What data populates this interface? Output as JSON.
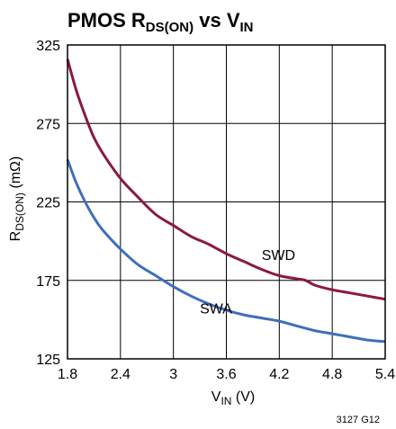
{
  "chart_data": {
    "type": "line",
    "title": {
      "main": "PMOS R",
      "main_sub": "DS(ON)",
      "vs": " vs V",
      "vs_sub": "IN"
    },
    "xlabel": {
      "main": "V",
      "sub": "IN",
      "unit": " (V)"
    },
    "ylabel": {
      "main": "R",
      "sub": "DS(ON)",
      "unit": " (mΩ)"
    },
    "xlim": [
      1.8,
      5.4
    ],
    "ylim": [
      125,
      325
    ],
    "x_ticks": [
      1.8,
      2.4,
      3,
      3.6,
      4.2,
      4.8,
      5.4
    ],
    "x_tick_labels": [
      "1.8",
      "2.4",
      "3",
      "3.6",
      "4.2",
      "4.8",
      "5.4"
    ],
    "y_ticks": [
      125,
      175,
      225,
      275,
      325
    ],
    "y_tick_labels": [
      "125",
      "175",
      "225",
      "275",
      "325"
    ],
    "grid": true,
    "series": [
      {
        "name": "SWD",
        "color": "#8b1a3a",
        "x": [
          1.8,
          1.9,
          2.0,
          2.1,
          2.2,
          2.4,
          2.6,
          2.8,
          3.0,
          3.2,
          3.4,
          3.6,
          3.8,
          4.0,
          4.2,
          4.4,
          4.5,
          4.6,
          4.8,
          5.0,
          5.2,
          5.4
        ],
        "values": [
          316,
          296,
          280,
          266,
          256,
          240,
          228,
          217,
          210,
          203,
          198,
          192,
          187,
          182,
          178,
          176,
          175,
          172,
          169,
          167,
          165,
          163
        ]
      },
      {
        "name": "SWA",
        "color": "#3f6fba",
        "x": [
          1.8,
          1.9,
          2.0,
          2.1,
          2.2,
          2.4,
          2.6,
          2.8,
          3.0,
          3.2,
          3.4,
          3.6,
          3.8,
          4.0,
          4.2,
          4.4,
          4.6,
          4.8,
          5.0,
          5.2,
          5.4
        ],
        "values": [
          252,
          237,
          225,
          215,
          207,
          195,
          185,
          178,
          171,
          165,
          160,
          156,
          153,
          151,
          149,
          146,
          143,
          141,
          139,
          137,
          136
        ]
      }
    ],
    "annotations": [
      {
        "text": "SWD",
        "x": 4.0,
        "y": 188
      },
      {
        "text": "SWA",
        "x": 3.3,
        "y": 154
      }
    ],
    "figure_number": "3127 G12"
  }
}
